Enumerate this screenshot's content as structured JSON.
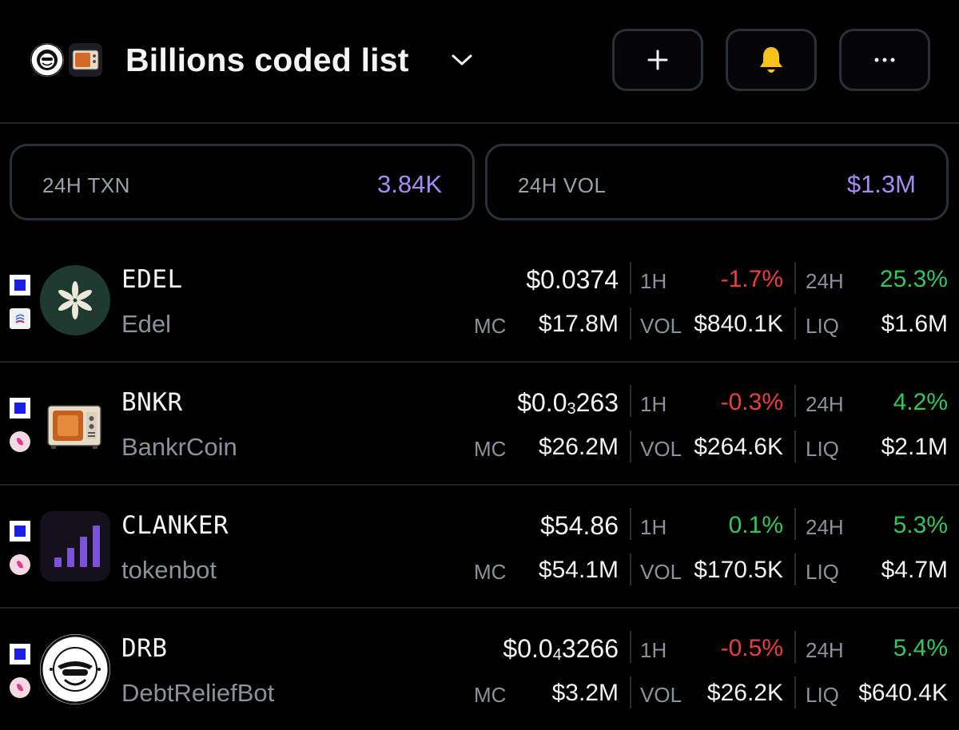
{
  "header": {
    "title": "Billions coded list",
    "buttons": {
      "add": "+",
      "more": "···"
    }
  },
  "stats": {
    "txn": {
      "label": "24H TXN",
      "value": "3.84K"
    },
    "vol": {
      "label": "24H VOL",
      "value": "$1.3M"
    }
  },
  "labels": {
    "h1": "1H",
    "h24": "24H",
    "mc": "MC",
    "vol": "VOL",
    "liq": "LIQ"
  },
  "colors": {
    "accent": "#a48cf6",
    "negative": "#ef3b3b",
    "positive": "#2fc85a",
    "background": "#000000"
  },
  "tokens": [
    {
      "symbol": "EDEL",
      "name": "Edel",
      "price": "$0.0374",
      "mc": "$17.8M",
      "h1": "-1.7%",
      "h24": "25.3%",
      "vol": "$840.1K",
      "liq": "$1.6M",
      "icon": "edel-flower-icon",
      "chain_icon": "ethereum-icon"
    },
    {
      "symbol": "BNKR",
      "name": "BankrCoin",
      "price_pre": "$0.0",
      "price_sub": "3",
      "price_post": "263",
      "mc": "$26.2M",
      "h1": "-0.3%",
      "h24": "4.2%",
      "vol": "$264.6K",
      "liq": "$2.1M",
      "icon": "bankr-tv-icon",
      "chain_icon": "uniswap-icon"
    },
    {
      "symbol": "CLANKER",
      "name": "tokenbot",
      "price": "$54.86",
      "mc": "$54.1M",
      "h1": "0.1%",
      "h24": "5.3%",
      "vol": "$170.5K",
      "liq": "$4.7M",
      "icon": "clanker-bars-icon",
      "chain_icon": "uniswap-icon"
    },
    {
      "symbol": "DRB",
      "name": "DebtReliefBot",
      "price_pre": "$0.0",
      "price_sub": "4",
      "price_post": "3266",
      "mc": "$3.2M",
      "h1": "-0.5%",
      "h24": "5.4%",
      "vol": "$26.2K",
      "liq": "$640.4K",
      "icon": "drb-task-force-icon",
      "chain_icon": "uniswap-icon"
    }
  ]
}
